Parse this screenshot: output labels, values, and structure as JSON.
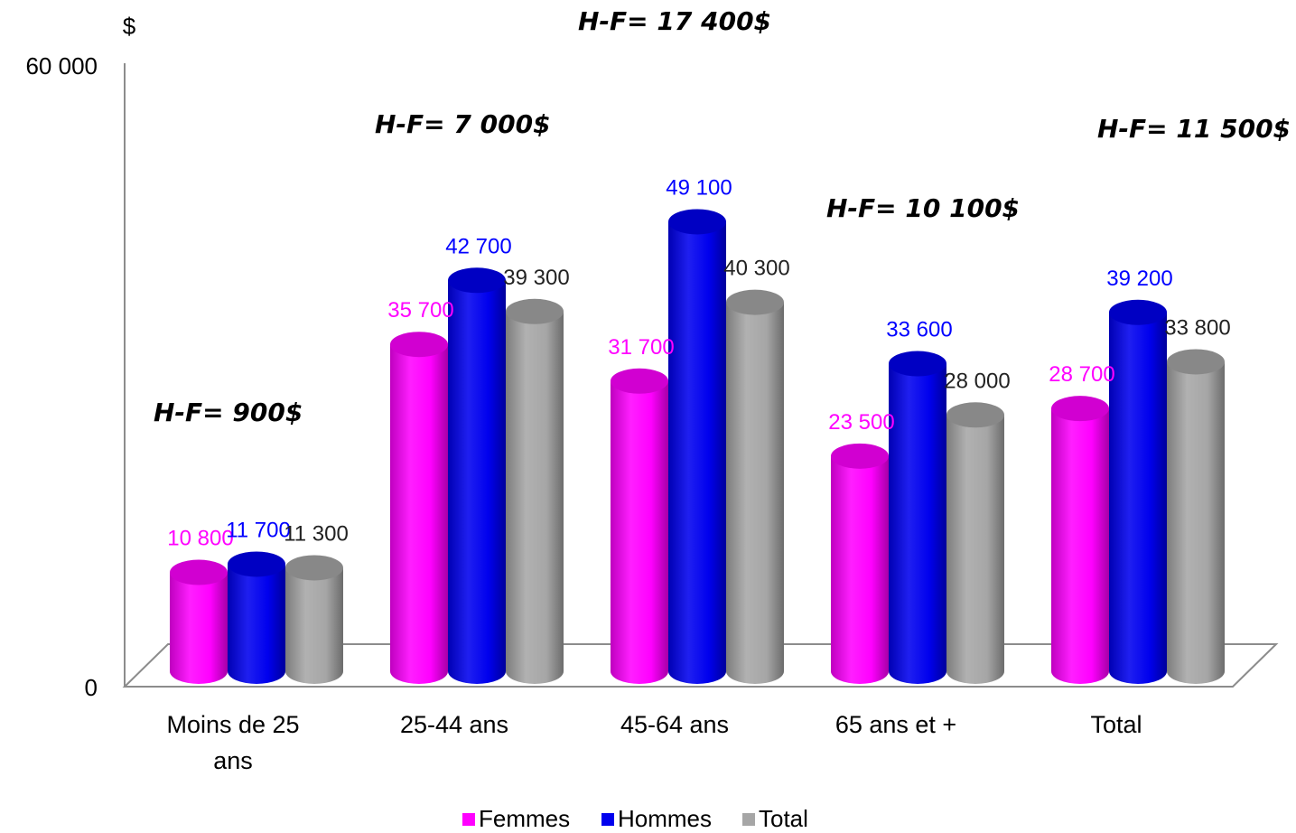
{
  "chart_data": {
    "type": "bar",
    "ylabel": "$",
    "yticks": [
      "0",
      "60 000"
    ],
    "ylim": [
      0,
      60000
    ],
    "categories": [
      [
        "Moins de 25",
        "ans"
      ],
      [
        "25-44 ans"
      ],
      [
        "45-64 ans"
      ],
      [
        "65 ans et +"
      ],
      [
        "Total"
      ]
    ],
    "series": [
      {
        "name": "Femmes",
        "color": "#ff00ff",
        "values": [
          10800,
          35700,
          31700,
          23500,
          28700
        ],
        "labels": [
          "10 800",
          "35 700",
          "31 700",
          "23 500",
          "28 700"
        ]
      },
      {
        "name": "Hommes",
        "color": "#0000ee",
        "values": [
          11700,
          42700,
          49100,
          33600,
          39200
        ],
        "labels": [
          "11 700",
          "42 700",
          "49 100",
          "33 600",
          "39 200"
        ]
      },
      {
        "name": "Total",
        "color": "#a6a6a6",
        "values": [
          11300,
          39300,
          40300,
          28000,
          33800
        ],
        "labels": [
          "11 300",
          "39 300",
          "40 300",
          "28 000",
          "33 800"
        ]
      }
    ],
    "annotations": [
      "H-F= 900$",
      "H-F= 7 000$",
      "H-F= 17 400$",
      "H-F= 10 100$",
      "H-F= 11 500$"
    ],
    "label_colors": [
      "#ff00ff",
      "#0000ff",
      "#222222"
    ],
    "legend_position": "bottom",
    "grid": false
  }
}
